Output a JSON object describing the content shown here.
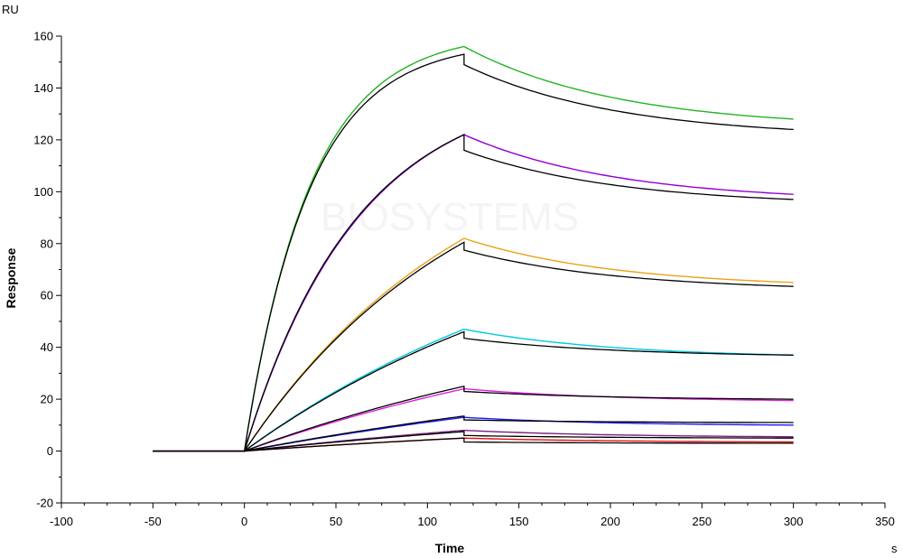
{
  "chart_data": {
    "type": "line",
    "title": "",
    "xlabel": "Time",
    "ylabel": "Response",
    "x_unit": "s",
    "y_unit": "RU",
    "xlim": [
      -100,
      350
    ],
    "ylim": [
      -20,
      160
    ],
    "x_ticks": [
      -100,
      -50,
      0,
      50,
      100,
      150,
      200,
      250,
      300,
      350
    ],
    "y_ticks": [
      -20,
      0,
      20,
      40,
      60,
      80,
      100,
      120,
      140,
      160
    ],
    "x_tick_labels": [
      "-100",
      "-50",
      "0",
      "50",
      "100",
      "150",
      "200",
      "250",
      "300",
      "350"
    ],
    "y_tick_labels": [
      "-20",
      "0",
      "20",
      "40",
      "60",
      "80",
      "100",
      "120",
      "140",
      "160"
    ],
    "grid": false,
    "legend": "none",
    "fit_color": "#000000",
    "series": [
      {
        "color": "#22b422",
        "baseline_start": -50,
        "association_start": 0,
        "dissociation_start": 120,
        "end": 300,
        "peak": 156,
        "final": 128
      },
      {
        "color": "#9400d3",
        "baseline_start": -50,
        "association_start": 0,
        "dissociation_start": 120,
        "end": 300,
        "peak": 122,
        "final": 99
      },
      {
        "color": "#e8a317",
        "baseline_start": -50,
        "association_start": 0,
        "dissociation_start": 120,
        "end": 300,
        "peak": 82,
        "final": 65
      },
      {
        "color": "#00c8e0",
        "baseline_start": -50,
        "association_start": 0,
        "dissociation_start": 120,
        "end": 300,
        "peak": 47,
        "final": 37
      },
      {
        "color": "#e020e0",
        "baseline_start": -50,
        "association_start": 0,
        "dissociation_start": 120,
        "end": 300,
        "peak": 24,
        "final": 19.5
      },
      {
        "color": "#1a1aff",
        "baseline_start": -50,
        "association_start": 0,
        "dissociation_start": 120,
        "end": 300,
        "peak": 13,
        "final": 10
      },
      {
        "color": "#7a1f7a",
        "baseline_start": -50,
        "association_start": 0,
        "dissociation_start": 120,
        "end": 300,
        "peak": 8,
        "final": 5.5
      },
      {
        "color": "#e01010",
        "baseline_start": -50,
        "association_start": 0,
        "dissociation_start": 120,
        "end": 300,
        "peak": 5,
        "final": 3.5
      }
    ],
    "fits": [
      {
        "peak": 153,
        "dissociation_drop": 4,
        "final": 124
      },
      {
        "peak": 122,
        "dissociation_drop": 6,
        "final": 97
      },
      {
        "peak": 80.5,
        "dissociation_drop": 3,
        "final": 63.5
      },
      {
        "peak": 46,
        "dissociation_drop": 2.5,
        "final": 37
      },
      {
        "peak": 25,
        "dissociation_drop": 2,
        "final": 20
      },
      {
        "peak": 13.5,
        "dissociation_drop": 1.5,
        "final": 11
      },
      {
        "peak": 7.5,
        "dissociation_drop": 1.5,
        "final": 5
      },
      {
        "peak": 5,
        "dissociation_drop": 1.5,
        "final": 3
      }
    ],
    "watermark_text": "BIOSYSTEMS"
  }
}
